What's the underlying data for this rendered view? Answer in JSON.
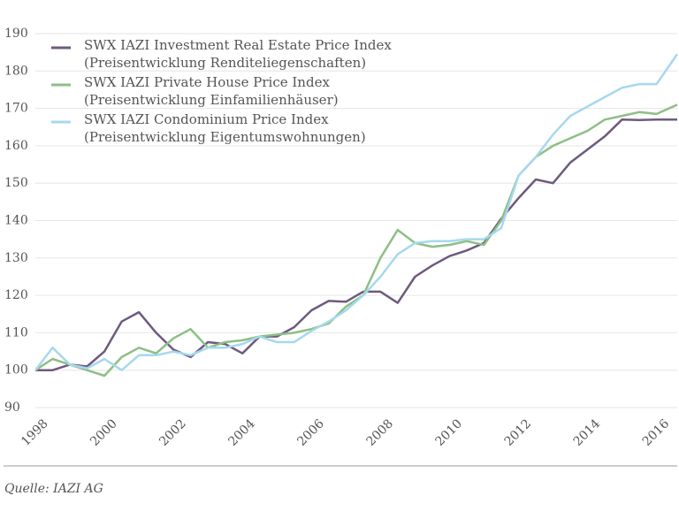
{
  "chart_data": {
    "type": "line",
    "source": "Quelle: IAZI AG",
    "x": [
      1998,
      1998.5,
      1999,
      1999.5,
      2000,
      2000.5,
      2001,
      2001.5,
      2002,
      2002.5,
      2003,
      2003.5,
      2004,
      2004.5,
      2005,
      2005.5,
      2006,
      2006.5,
      2007,
      2007.5,
      2008,
      2008.5,
      2009,
      2009.5,
      2010,
      2010.5,
      2011,
      2011.5,
      2012,
      2012.5,
      2013,
      2013.5,
      2014,
      2014.5,
      2015,
      2015.5,
      2016,
      2016.6
    ],
    "series": [
      {
        "name": "SWX IAZI Investment Real Estate Price Index",
        "description": "(Preisentwicklung Renditeliegenschaften)",
        "color": "#6e5a7e",
        "values": [
          100,
          100,
          101.5,
          101,
          105,
          113,
          115.5,
          110,
          105.5,
          103.5,
          107.5,
          107,
          104.5,
          109,
          109,
          111.5,
          116,
          118.5,
          118.3,
          121,
          121,
          118,
          125,
          128,
          130.5,
          132,
          134,
          140.5,
          146,
          151,
          150,
          155.5,
          159,
          162.5,
          167,
          166.9,
          167,
          167
        ]
      },
      {
        "name": "SWX IAZI Private House Price Index",
        "description": "(Preisentwicklung Einfamilienhäuser)",
        "color": "#8dbf85",
        "values": [
          100,
          103,
          101.5,
          100,
          98.5,
          103.5,
          106,
          104.5,
          108.5,
          111,
          106,
          107.5,
          108,
          109,
          109.5,
          110,
          111,
          112.5,
          117,
          120,
          130,
          137.5,
          134,
          133,
          133.5,
          134.5,
          133.5,
          140,
          152,
          157,
          160,
          162,
          164,
          167,
          168,
          169,
          168.5,
          171
        ]
      },
      {
        "name": "SWX IAZI Condominium Price Index",
        "description": "(Preisentwicklung Eigentumswohnungen)",
        "color": "#a6d8ee",
        "values": [
          100,
          106,
          101.5,
          100.5,
          103,
          100,
          104,
          104,
          105,
          104,
          106,
          106,
          107,
          109,
          107.5,
          107.5,
          110.5,
          113,
          116,
          120,
          125,
          131,
          134,
          134.5,
          134.5,
          135,
          135,
          138,
          152,
          157,
          163,
          168,
          170.5,
          173,
          175.5,
          176.5,
          176.5,
          184.5
        ]
      }
    ],
    "xlim": [
      1998,
      2016.6
    ],
    "xticks": [
      1998,
      2000,
      2002,
      2004,
      2006,
      2008,
      2010,
      2012,
      2014,
      2016
    ],
    "ylim": [
      90,
      190
    ],
    "yticks": [
      90,
      100,
      110,
      120,
      130,
      140,
      150,
      160,
      170,
      180,
      190
    ],
    "grid": true,
    "legend": "top-left"
  }
}
